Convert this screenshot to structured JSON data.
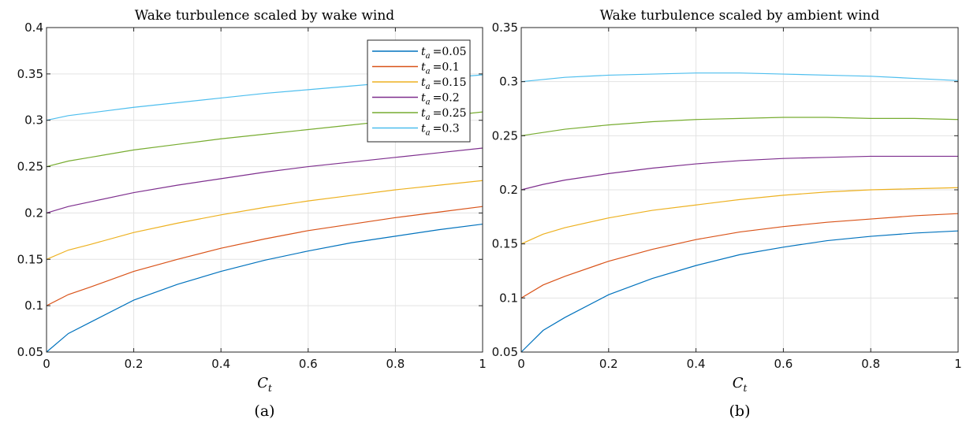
{
  "chart_data": [
    {
      "type": "line",
      "title": "Wake turbulence scaled by wake wind",
      "xlabel": {
        "base": "C",
        "sub": "t"
      },
      "ylabel": "",
      "caption": "(a)",
      "xlim": [
        0,
        1
      ],
      "ylim": [
        0.05,
        0.4
      ],
      "xticks": [
        "0",
        "0.2",
        "0.4",
        "0.6",
        "0.8",
        "1"
      ],
      "yticks": [
        "0.05",
        "0.1",
        "0.15",
        "0.2",
        "0.25",
        "0.3",
        "0.35",
        "0.4"
      ],
      "grid": true,
      "legend_position": "top-right",
      "x": [
        0,
        0.05,
        0.1,
        0.2,
        0.3,
        0.4,
        0.5,
        0.6,
        0.7,
        0.8,
        0.9,
        1.0
      ],
      "series": [
        {
          "name": "0.05",
          "color": "#0072BD",
          "values": [
            0.05,
            0.07,
            0.082,
            0.106,
            0.123,
            0.137,
            0.149,
            0.159,
            0.168,
            0.175,
            0.182,
            0.188
          ]
        },
        {
          "name": "0.1",
          "color": "#D95319",
          "values": [
            0.1,
            0.112,
            0.12,
            0.137,
            0.15,
            0.162,
            0.172,
            0.181,
            0.188,
            0.195,
            0.201,
            0.207
          ]
        },
        {
          "name": "0.15",
          "color": "#EDB120",
          "values": [
            0.15,
            0.16,
            0.166,
            0.179,
            0.189,
            0.198,
            0.206,
            0.213,
            0.219,
            0.225,
            0.23,
            0.235
          ]
        },
        {
          "name": "0.2",
          "color": "#7E2F8E",
          "values": [
            0.2,
            0.207,
            0.212,
            0.222,
            0.23,
            0.237,
            0.244,
            0.25,
            0.255,
            0.26,
            0.265,
            0.27
          ]
        },
        {
          "name": "0.25",
          "color": "#77AC30",
          "values": [
            0.25,
            0.256,
            0.26,
            0.268,
            0.274,
            0.28,
            0.285,
            0.29,
            0.295,
            0.3,
            0.304,
            0.309
          ]
        },
        {
          "name": "0.3",
          "color": "#4DBEEE",
          "values": [
            0.3,
            0.305,
            0.308,
            0.314,
            0.319,
            0.324,
            0.329,
            0.333,
            0.337,
            0.341,
            0.345,
            0.349
          ]
        }
      ]
    },
    {
      "type": "line",
      "title": "Wake turbulence scaled by ambient wind",
      "xlabel": {
        "base": "C",
        "sub": "t"
      },
      "ylabel": "",
      "caption": "(b)",
      "xlim": [
        0,
        1
      ],
      "ylim": [
        0.05,
        0.35
      ],
      "xticks": [
        "0",
        "0.2",
        "0.4",
        "0.6",
        "0.8",
        "1"
      ],
      "yticks": [
        "0.05",
        "0.1",
        "0.15",
        "0.2",
        "0.25",
        "0.3",
        "0.35"
      ],
      "grid": true,
      "x": [
        0,
        0.05,
        0.1,
        0.2,
        0.3,
        0.4,
        0.5,
        0.6,
        0.7,
        0.8,
        0.9,
        1.0
      ],
      "series": [
        {
          "color": "#0072BD",
          "values": [
            0.05,
            0.07,
            0.082,
            0.103,
            0.118,
            0.13,
            0.14,
            0.147,
            0.153,
            0.157,
            0.16,
            0.162
          ]
        },
        {
          "color": "#D95319",
          "values": [
            0.1,
            0.112,
            0.12,
            0.134,
            0.145,
            0.154,
            0.161,
            0.166,
            0.17,
            0.173,
            0.176,
            0.178
          ]
        },
        {
          "color": "#EDB120",
          "values": [
            0.15,
            0.159,
            0.165,
            0.174,
            0.181,
            0.186,
            0.191,
            0.195,
            0.198,
            0.2,
            0.201,
            0.202
          ]
        },
        {
          "color": "#7E2F8E",
          "values": [
            0.2,
            0.205,
            0.209,
            0.215,
            0.22,
            0.224,
            0.227,
            0.229,
            0.23,
            0.231,
            0.231,
            0.231
          ]
        },
        {
          "color": "#77AC30",
          "values": [
            0.25,
            0.253,
            0.256,
            0.26,
            0.263,
            0.265,
            0.266,
            0.267,
            0.267,
            0.266,
            0.266,
            0.265
          ]
        },
        {
          "color": "#4DBEEE",
          "values": [
            0.3,
            0.302,
            0.304,
            0.306,
            0.307,
            0.308,
            0.308,
            0.307,
            0.306,
            0.305,
            0.303,
            0.301
          ]
        }
      ]
    }
  ],
  "legend": {
    "var": "t",
    "sub": "a",
    "prefix": "="
  }
}
